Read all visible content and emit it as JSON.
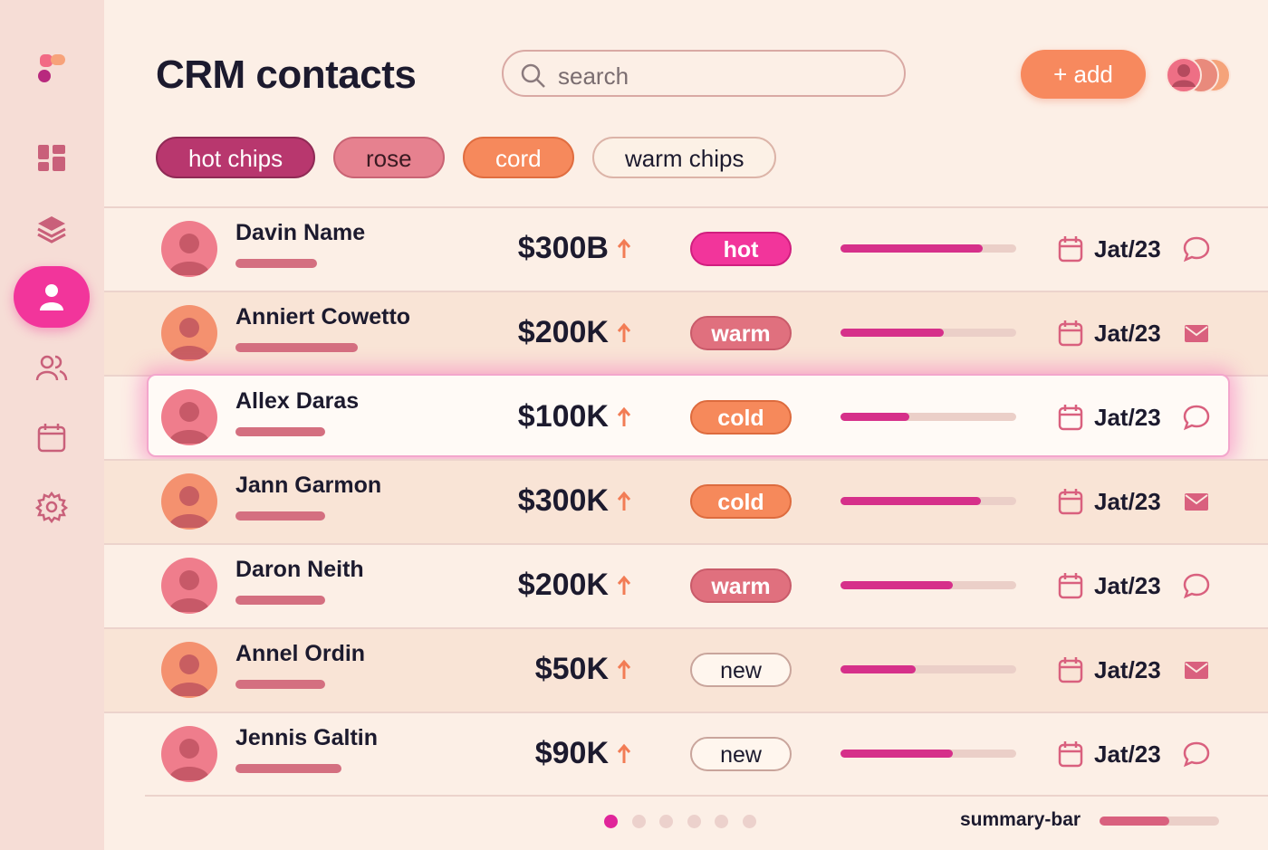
{
  "header": {
    "title": "CRM contacts",
    "search_placeholder": "search",
    "add_button": "+ add"
  },
  "filters": [
    {
      "label": "hot chips",
      "style": "hot"
    },
    {
      "label": "rose",
      "style": "rose"
    },
    {
      "label": "cord",
      "style": "cord"
    },
    {
      "label": "warm chips",
      "style": "light"
    }
  ],
  "contacts": [
    {
      "name": "Davin Name",
      "value": "$300B",
      "status": "hot",
      "progress": 81,
      "date": "Jat/23",
      "contact": "chat"
    },
    {
      "name": "Anniert Cowetto",
      "value": "$200K",
      "status": "warm",
      "progress": 59,
      "date": "Jat/23",
      "contact": "mail"
    },
    {
      "name": "Allex Daras",
      "value": "$100K",
      "status": "cold",
      "progress": 39,
      "date": "Jat/23",
      "contact": "chat",
      "selected": true
    },
    {
      "name": "Jann Garmon",
      "value": "$300K",
      "status": "cold",
      "progress": 80,
      "date": "Jat/23",
      "contact": "mail"
    },
    {
      "name": "Daron Neith",
      "value": "$200K",
      "status": "warm",
      "progress": 64,
      "date": "Jat/23",
      "contact": "chat"
    },
    {
      "name": "Annel Ordin",
      "value": "$50K",
      "status": "new",
      "progress": 43,
      "date": "Jat/23",
      "contact": "mail"
    },
    {
      "name": "Jennis Galtin",
      "value": "$90K",
      "status": "new",
      "progress": 64,
      "date": "Jat/23",
      "contact": "chat"
    }
  ],
  "pagination": {
    "pages": 6,
    "current": 0
  },
  "summary": {
    "label": "summary-bar",
    "progress": 58
  }
}
